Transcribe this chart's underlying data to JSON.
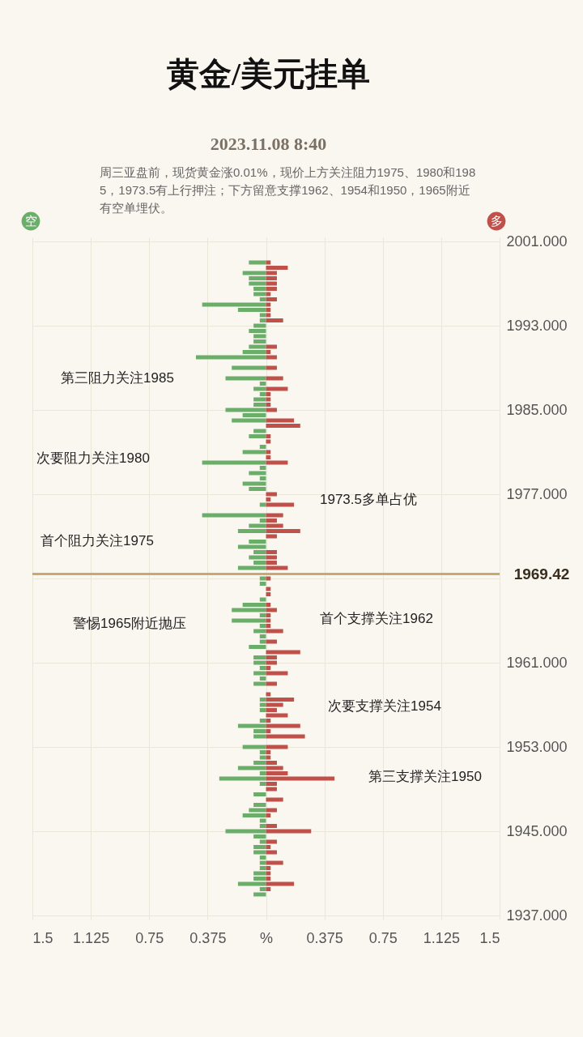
{
  "chart_data": {
    "type": "bar",
    "orientation": "horizontal",
    "title": "黄金/美元挂单",
    "subtitle": "2023.11.08 8:40",
    "x": [
      1999,
      1998.5,
      1998,
      1997.5,
      1997,
      1996.5,
      1996,
      1995.5,
      1995,
      1994.5,
      1994,
      1993.5,
      1993,
      1992.5,
      1992,
      1991.5,
      1991,
      1990.5,
      1990,
      1989.5,
      1989,
      1988.5,
      1988,
      1987.5,
      1987,
      1986.5,
      1986,
      1985.5,
      1985,
      1984.5,
      1984,
      1983.5,
      1983,
      1982.5,
      1982,
      1981.5,
      1981,
      1980.5,
      1980,
      1979.5,
      1979,
      1978.5,
      1978,
      1977.5,
      1977,
      1976.5,
      1976,
      1975.5,
      1975,
      1974.5,
      1974,
      1973.5,
      1973,
      1972.5,
      1972,
      1971.5,
      1971,
      1970.5,
      1970,
      1969.5,
      1969,
      1968.5,
      1968,
      1967.5,
      1967,
      1966.5,
      1966,
      1965.5,
      1965,
      1964.5,
      1964,
      1963.5,
      1963,
      1962.5,
      1962,
      1961.5,
      1961,
      1960.5,
      1960,
      1959.5,
      1959,
      1958.5,
      1958,
      1957.5,
      1957,
      1956.5,
      1956,
      1955.5,
      1955,
      1954.5,
      1954,
      1953.5,
      1953,
      1952.5,
      1952,
      1951.5,
      1951,
      1950.5,
      1950,
      1949.5,
      1949,
      1948.5,
      1948,
      1947.5,
      1947,
      1946.5,
      1946,
      1945.5,
      1945,
      1944.5,
      1944,
      1943.5,
      1943,
      1942.5,
      1942,
      1941.5,
      1941,
      1940.5,
      1940,
      1939.5,
      1939
    ],
    "series": [
      {
        "name": "空",
        "color": "#6aae6a",
        "values": [
          -0.11,
          null,
          -0.15,
          -0.11,
          -0.11,
          -0.08,
          -0.08,
          -0.04,
          -0.41,
          -0.18,
          -0.04,
          -0.04,
          -0.08,
          -0.11,
          -0.08,
          -0.08,
          -0.11,
          -0.15,
          -0.45,
          null,
          -0.22,
          null,
          -0.26,
          -0.04,
          -0.08,
          -0.04,
          -0.08,
          -0.08,
          -0.26,
          -0.15,
          -0.22,
          null,
          -0.08,
          -0.11,
          null,
          -0.04,
          -0.15,
          null,
          -0.41,
          -0.04,
          -0.11,
          -0.04,
          -0.15,
          -0.11,
          null,
          null,
          -0.04,
          null,
          -0.41,
          -0.04,
          -0.11,
          -0.18,
          null,
          -0.11,
          -0.18,
          -0.08,
          -0.11,
          -0.08,
          -0.18,
          null,
          -0.04,
          -0.04,
          null,
          null,
          -0.04,
          -0.15,
          -0.22,
          -0.04,
          -0.22,
          -0.04,
          -0.08,
          -0.04,
          -0.04,
          -0.11,
          null,
          -0.08,
          -0.08,
          -0.04,
          -0.08,
          -0.04,
          -0.08,
          null,
          null,
          -0.04,
          -0.04,
          -0.04,
          null,
          -0.04,
          -0.18,
          -0.08,
          -0.08,
          null,
          -0.15,
          -0.04,
          -0.04,
          -0.08,
          -0.18,
          -0.04,
          -0.3,
          -0.04,
          null,
          -0.08,
          null,
          -0.08,
          -0.11,
          -0.15,
          -0.04,
          -0.04,
          -0.26,
          -0.08,
          -0.04,
          -0.08,
          -0.08,
          -0.04,
          -0.04,
          -0.04,
          -0.08,
          -0.08,
          -0.18,
          -0.04,
          -0.08
        ]
      },
      {
        "name": "多",
        "color": "#c0504a",
        "values": [
          0.03,
          0.14,
          0.07,
          0.07,
          0.07,
          0.07,
          0.03,
          0.07,
          0.03,
          0.03,
          0.03,
          0.11,
          null,
          null,
          null,
          null,
          0.07,
          0.03,
          0.07,
          null,
          0.07,
          null,
          0.11,
          null,
          0.14,
          0.03,
          0.03,
          0.03,
          0.07,
          null,
          0.18,
          0.22,
          null,
          0.03,
          0.03,
          null,
          0.03,
          0.03,
          0.14,
          null,
          null,
          null,
          null,
          null,
          0.07,
          0.03,
          0.18,
          null,
          0.11,
          0.07,
          0.11,
          0.22,
          0.07,
          null,
          null,
          0.07,
          0.07,
          0.07,
          0.14,
          null,
          0.03,
          null,
          0.03,
          0.03,
          null,
          0.03,
          0.07,
          0.03,
          0.03,
          0.03,
          0.11,
          null,
          0.07,
          null,
          0.22,
          0.07,
          0.07,
          0.03,
          0.14,
          null,
          0.07,
          null,
          0.03,
          0.18,
          0.11,
          0.07,
          0.14,
          0.03,
          0.22,
          0.03,
          0.25,
          null,
          0.14,
          0.03,
          0.03,
          0.07,
          0.11,
          0.14,
          0.44,
          0.07,
          0.07,
          null,
          0.11,
          null,
          0.07,
          0.03,
          null,
          0.07,
          0.29,
          null,
          0.07,
          0.03,
          0.07,
          null,
          0.11,
          0.03,
          0.03,
          0.03,
          0.18,
          0.03,
          null
        ]
      }
    ],
    "stacked": true,
    "xlim": [
      -1.5,
      1.5
    ],
    "xticks": [
      {
        "value": -1.5,
        "label": "1.5"
      },
      {
        "value": -1.125,
        "label": "1.125"
      },
      {
        "value": -0.75,
        "label": "0.75"
      },
      {
        "value": -0.375,
        "label": "0.375"
      },
      {
        "value": 0,
        "label": "%"
      },
      0.375,
      0.75,
      1.125,
      1.5
    ],
    "ylim": [
      1937,
      2001
    ],
    "yticks": [
      {
        "value": 1937,
        "label": "1937.000"
      },
      {
        "value": 1945,
        "label": "1945.000"
      },
      {
        "value": 1953,
        "label": "1953.000"
      },
      {
        "value": 1961,
        "label": "1961.000"
      },
      {
        "value": 1969,
        "label": null
      },
      {
        "value": 1977,
        "label": "1977.000"
      },
      {
        "value": 1985,
        "label": "1985.000"
      },
      {
        "value": 1993,
        "label": "1993.000"
      },
      {
        "value": 2001,
        "label": "2001.000"
      }
    ],
    "ref_lines": [
      {
        "axis": "y",
        "value": 1969.42,
        "label": "1969.42",
        "color": "#c9a96e"
      }
    ],
    "annotations": [
      "周三亚盘前，现货黄金涨0.01%，现价上方关注阻力1975、1980和1985，1973.5有上行押注；下方留意支撑1962、1954和1950，1965附近有空单埋伏。",
      "第三阻力关注1985",
      "次要阻力关注1980",
      "1973.5多单占优",
      "首个阻力关注1975",
      "警惕1965附近抛压",
      "首个支撑关注1962",
      "次要支撑关注1954",
      "第三支撑关注1950"
    ],
    "grid": true,
    "legend": "top"
  }
}
